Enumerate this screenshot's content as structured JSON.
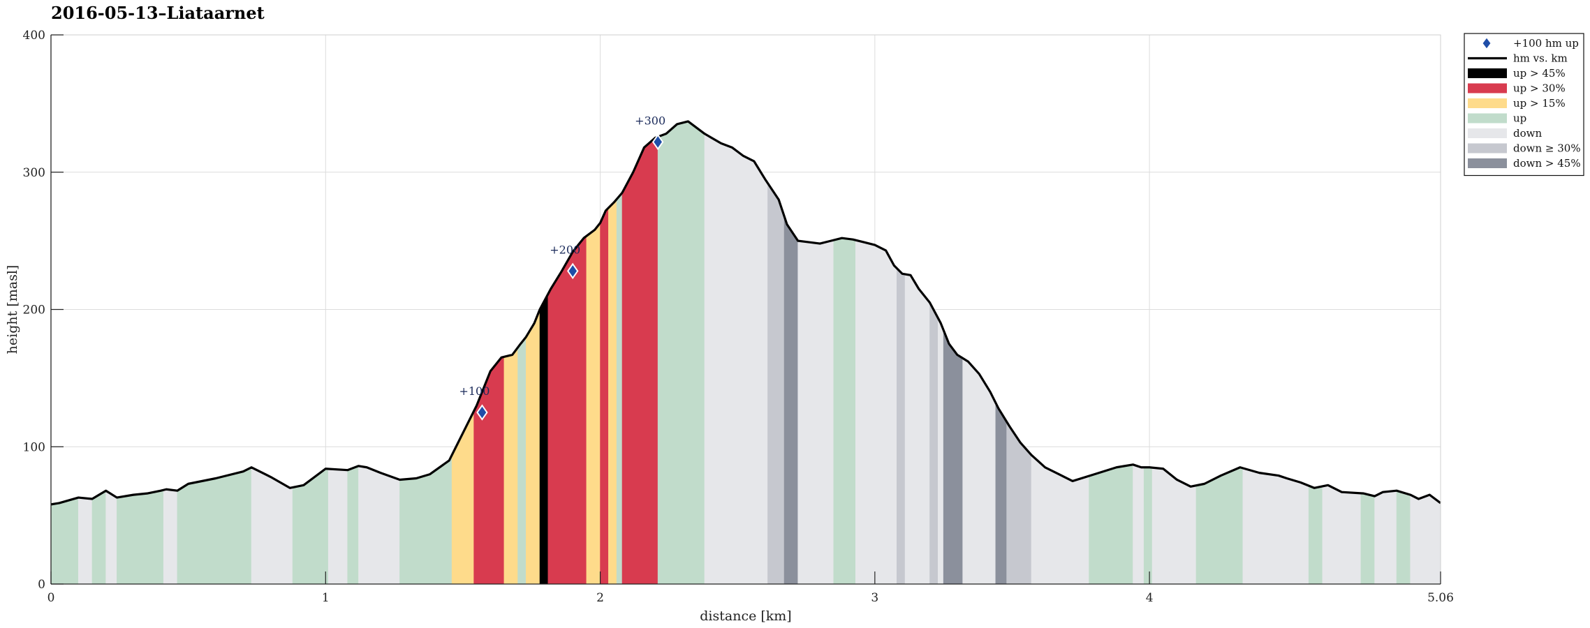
{
  "chart_data": {
    "type": "area",
    "title": "2016-05-13–Liataarnet",
    "xlabel": "distance [km]",
    "ylabel": "height [masl]",
    "xlim": [
      0,
      5.06
    ],
    "ylim": [
      0,
      400
    ],
    "xticks": [
      0,
      1,
      2,
      3,
      4,
      5.06
    ],
    "xtick_labels": [
      "0",
      "1",
      "2",
      "3",
      "4",
      "5.06"
    ],
    "yticks": [
      0,
      100,
      200,
      300,
      400
    ],
    "ytick_labels": [
      "0",
      "100",
      "200",
      "300",
      "400"
    ],
    "grid": true,
    "legend_position": "outside-top-right",
    "profile": {
      "name": "hm vs. km",
      "x": [
        0,
        0.03,
        0.1,
        0.15,
        0.2,
        0.24,
        0.3,
        0.35,
        0.4,
        0.42,
        0.46,
        0.5,
        0.6,
        0.7,
        0.73,
        0.8,
        0.87,
        0.92,
        1.0,
        1.08,
        1.12,
        1.15,
        1.2,
        1.27,
        1.33,
        1.38,
        1.45,
        1.5,
        1.55,
        1.6,
        1.64,
        1.68,
        1.71,
        1.73,
        1.76,
        1.78,
        1.82,
        1.86,
        1.9,
        1.94,
        1.98,
        2.0,
        2.02,
        2.05,
        2.08,
        2.12,
        2.16,
        2.2,
        2.24,
        2.28,
        2.32,
        2.38,
        2.44,
        2.48,
        2.52,
        2.56,
        2.6,
        2.65,
        2.68,
        2.72,
        2.76,
        2.8,
        2.84,
        2.88,
        2.92,
        2.96,
        3.0,
        3.04,
        3.07,
        3.1,
        3.13,
        3.16,
        3.2,
        3.24,
        3.27,
        3.3,
        3.34,
        3.38,
        3.42,
        3.45,
        3.49,
        3.53,
        3.57,
        3.62,
        3.67,
        3.72,
        3.8,
        3.88,
        3.94,
        3.97,
        4.0,
        4.05,
        4.1,
        4.15,
        4.2,
        4.26,
        4.33,
        4.4,
        4.47,
        4.5,
        4.55,
        4.6,
        4.65,
        4.7,
        4.78,
        4.82,
        4.85,
        4.9,
        4.95,
        4.98,
        5.02,
        5.06
      ],
      "y": [
        58,
        59,
        63,
        62,
        68,
        63,
        65,
        66,
        68,
        69,
        68,
        73,
        77,
        82,
        85,
        78,
        70,
        72,
        84,
        83,
        86,
        85,
        81,
        76,
        77,
        80,
        90,
        110,
        130,
        155,
        165,
        167,
        175,
        180,
        190,
        200,
        215,
        228,
        242,
        252,
        258,
        263,
        272,
        278,
        285,
        300,
        318,
        325,
        328,
        335,
        337,
        328,
        321,
        318,
        312,
        308,
        295,
        280,
        262,
        250,
        249,
        248,
        250,
        252,
        251,
        249,
        247,
        243,
        232,
        226,
        225,
        215,
        205,
        190,
        175,
        167,
        162,
        153,
        140,
        128,
        115,
        103,
        94,
        85,
        80,
        75,
        80,
        85,
        87,
        85,
        85,
        84,
        76,
        71,
        73,
        79,
        85,
        81,
        79,
        77,
        74,
        70,
        72,
        67,
        66,
        64,
        67,
        68,
        65,
        62,
        65,
        59
      ]
    },
    "categories": [
      {
        "name": "up > 45%",
        "color": "#000000"
      },
      {
        "name": "up > 30%",
        "color": "#d83b4f"
      },
      {
        "name": "up > 15%",
        "color": "#fedb8b"
      },
      {
        "name": "up",
        "color": "#c1dccb"
      },
      {
        "name": "down",
        "color": "#e6e7ea"
      },
      {
        "name": "down ≥ 30%",
        "color": "#c6c8cf"
      },
      {
        "name": "down > 45%",
        "color": "#8b909c"
      }
    ],
    "segments": [
      [
        0,
        0.1,
        "up"
      ],
      [
        0.1,
        0.15,
        "down"
      ],
      [
        0.15,
        0.2,
        "up"
      ],
      [
        0.2,
        0.24,
        "down"
      ],
      [
        0.24,
        0.41,
        "up"
      ],
      [
        0.41,
        0.46,
        "down"
      ],
      [
        0.46,
        0.73,
        "up"
      ],
      [
        0.73,
        0.88,
        "down"
      ],
      [
        0.88,
        1.01,
        "up"
      ],
      [
        1.01,
        1.08,
        "down"
      ],
      [
        1.08,
        1.12,
        "up"
      ],
      [
        1.12,
        1.27,
        "down"
      ],
      [
        1.27,
        1.46,
        "up"
      ],
      [
        1.46,
        1.54,
        "up > 15%"
      ],
      [
        1.54,
        1.65,
        "up > 30%"
      ],
      [
        1.65,
        1.7,
        "up > 15%"
      ],
      [
        1.7,
        1.73,
        "up"
      ],
      [
        1.73,
        1.78,
        "up > 15%"
      ],
      [
        1.78,
        1.81,
        "up > 45%"
      ],
      [
        1.81,
        1.95,
        "up > 30%"
      ],
      [
        1.95,
        2.0,
        "up > 15%"
      ],
      [
        2.0,
        2.03,
        "up > 30%"
      ],
      [
        2.03,
        2.06,
        "up > 15%"
      ],
      [
        2.06,
        2.08,
        "up"
      ],
      [
        2.08,
        2.21,
        "up > 30%"
      ],
      [
        2.21,
        2.38,
        "up"
      ],
      [
        2.38,
        2.61,
        "down"
      ],
      [
        2.61,
        2.67,
        "down ≥ 30%"
      ],
      [
        2.67,
        2.72,
        "down > 45%"
      ],
      [
        2.72,
        2.85,
        "down"
      ],
      [
        2.85,
        2.93,
        "up"
      ],
      [
        2.93,
        3.08,
        "down"
      ],
      [
        3.08,
        3.11,
        "down ≥ 30%"
      ],
      [
        3.11,
        3.2,
        "down"
      ],
      [
        3.2,
        3.23,
        "down ≥ 30%"
      ],
      [
        3.23,
        3.25,
        "down"
      ],
      [
        3.25,
        3.32,
        "down > 45%"
      ],
      [
        3.32,
        3.44,
        "down"
      ],
      [
        3.44,
        3.48,
        "down > 45%"
      ],
      [
        3.48,
        3.57,
        "down ≥ 30%"
      ],
      [
        3.57,
        3.78,
        "down"
      ],
      [
        3.78,
        3.94,
        "up"
      ],
      [
        3.94,
        3.98,
        "down"
      ],
      [
        3.98,
        4.01,
        "up"
      ],
      [
        4.01,
        4.17,
        "down"
      ],
      [
        4.17,
        4.34,
        "up"
      ],
      [
        4.34,
        4.58,
        "down"
      ],
      [
        4.58,
        4.63,
        "up"
      ],
      [
        4.63,
        4.77,
        "down"
      ],
      [
        4.77,
        4.82,
        "up"
      ],
      [
        4.82,
        4.9,
        "down"
      ],
      [
        4.9,
        4.95,
        "up"
      ],
      [
        4.95,
        5.06,
        "down"
      ]
    ],
    "markers": {
      "name": "+100 hm up",
      "color": "#1f4ea8",
      "points": [
        {
          "x": 1.57,
          "y": 125,
          "label": "+100"
        },
        {
          "x": 1.9,
          "y": 228,
          "label": "+200"
        },
        {
          "x": 2.21,
          "y": 322,
          "label": "+300"
        }
      ]
    }
  }
}
